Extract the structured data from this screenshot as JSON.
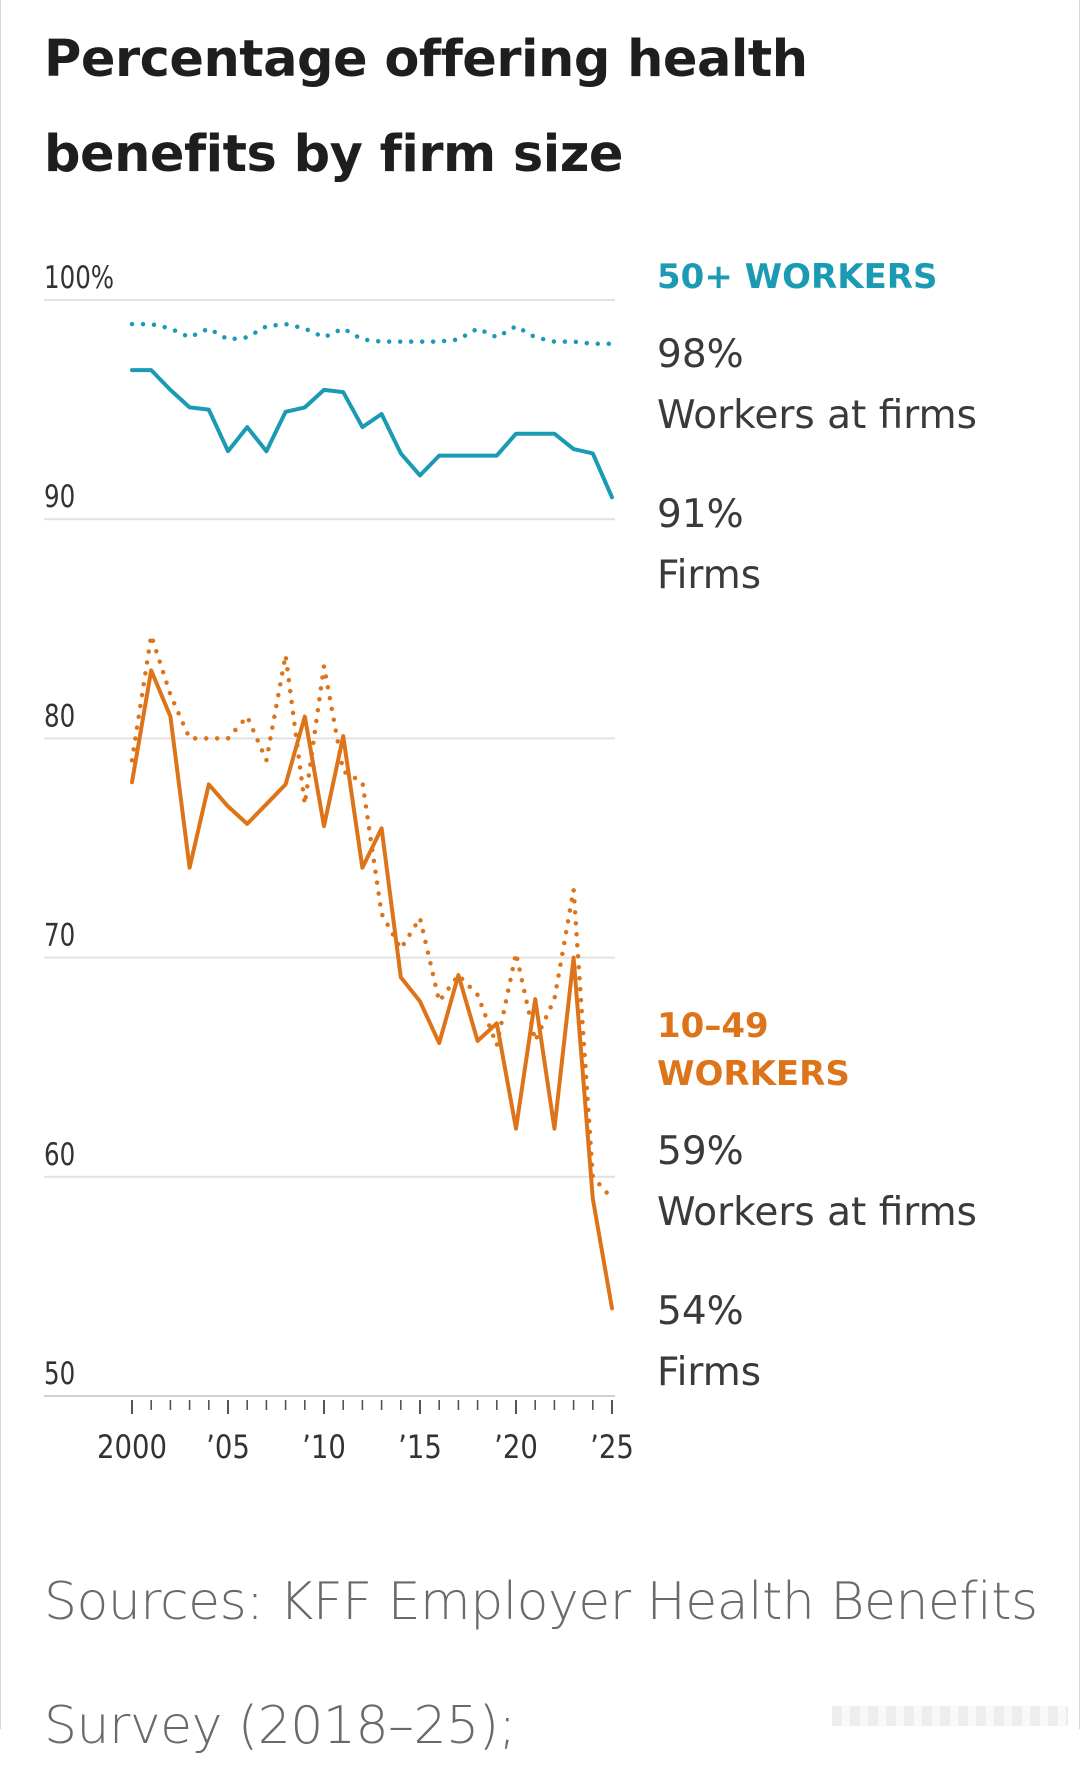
{
  "chart_data": {
    "type": "line",
    "title": "Percentage offering health benefits by firm size",
    "xlabel": "",
    "ylabel": "",
    "ylim": [
      50,
      100
    ],
    "xlim": [
      2000,
      2025
    ],
    "grid": true,
    "y_ticks": [
      {
        "value": 100,
        "label": "100%"
      },
      {
        "value": 90,
        "label": "90"
      },
      {
        "value": 80,
        "label": "80"
      },
      {
        "value": 70,
        "label": "70"
      },
      {
        "value": 60,
        "label": "60"
      },
      {
        "value": 50,
        "label": "50"
      }
    ],
    "x_ticks": [
      {
        "value": 2000,
        "label": "2000"
      },
      {
        "value": 2005,
        "label": "’05"
      },
      {
        "value": 2010,
        "label": "’10"
      },
      {
        "value": 2015,
        "label": "’15"
      },
      {
        "value": 2020,
        "label": "’20"
      },
      {
        "value": 2025,
        "label": "’25"
      }
    ],
    "x": [
      2000,
      2001,
      2002,
      2003,
      2004,
      2005,
      2006,
      2007,
      2008,
      2009,
      2010,
      2011,
      2012,
      2013,
      2014,
      2015,
      2016,
      2017,
      2018,
      2019,
      2020,
      2021,
      2022,
      2023,
      2024,
      2025
    ],
    "groups": [
      {
        "name": "50+ WORKERS",
        "color": "#1b9bb3",
        "series": [
          {
            "name": "Workers at firms",
            "style": "dotted",
            "end_label_value": "98%",
            "end_label_text": "Workers at firms",
            "values": [
              98.9,
              98.9,
              98.7,
              98.3,
              98.7,
              98.2,
              98.3,
              98.8,
              98.9,
              98.7,
              98.3,
              98.7,
              98.2,
              98.1,
              98.1,
              98.1,
              98.1,
              98.2,
              98.7,
              98.3,
              98.8,
              98.3,
              98.1,
              98.1,
              98.0,
              98.0
            ]
          },
          {
            "name": "Firms",
            "style": "solid",
            "end_label_value": "91%",
            "end_label_text": "Firms",
            "values": [
              96.8,
              96.8,
              95.9,
              95.1,
              95.0,
              93.1,
              94.2,
              93.1,
              94.9,
              95.1,
              95.9,
              95.8,
              94.2,
              94.8,
              93.0,
              92.0,
              92.9,
              92.9,
              92.9,
              92.9,
              93.9,
              93.9,
              93.9,
              93.2,
              93.0,
              91.0
            ]
          }
        ]
      },
      {
        "name": "10–49 WORKERS",
        "color": "#dd7419",
        "series": [
          {
            "name": "Workers at firms",
            "style": "dotted",
            "end_label_value": "59%",
            "end_label_text": "Workers at firms",
            "values": [
              79,
              84.7,
              82,
              80,
              80,
              80,
              81,
              79,
              83.8,
              77,
              83.3,
              78.5,
              78,
              72,
              70.4,
              71.8,
              68,
              69.2,
              68.3,
              66,
              70.2,
              66.2,
              68.1,
              73.1,
              60,
              59
            ]
          },
          {
            "name": "Firms",
            "style": "solid",
            "end_label_value": "54%",
            "end_label_text": "Firms",
            "values": [
              78,
              83.1,
              81,
              74.1,
              77.9,
              76.9,
              76.1,
              77,
              77.9,
              81,
              76,
              80.1,
              74.1,
              75.9,
              69.1,
              68,
              66.1,
              69.2,
              66.2,
              67,
              62.2,
              68.1,
              62.2,
              70.0,
              59,
              54
            ]
          }
        ]
      }
    ]
  },
  "source": "Sources: KFF Employer Health Benefits Survey (2018–25);"
}
